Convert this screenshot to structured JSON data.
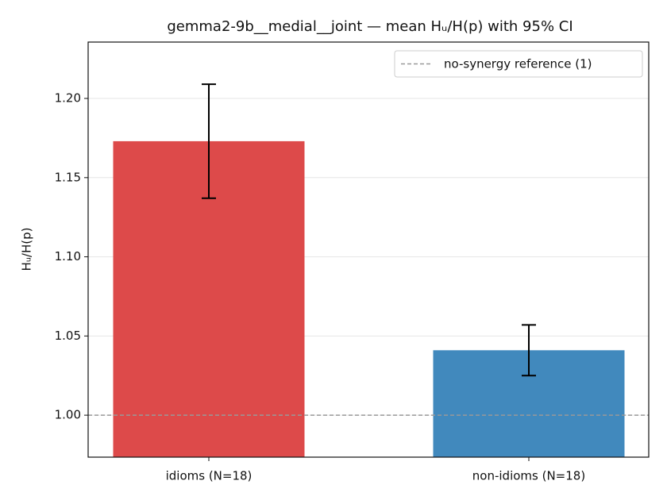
{
  "chart_data": {
    "type": "bar",
    "title": "gemma2-9b__medial__joint — mean Hᵤ/H(p) with 95% CI",
    "y_label": "Hᵤ/H(p)",
    "categories": [
      "idioms (N=18)",
      "non-idioms (N=18)"
    ],
    "values": [
      1.173,
      1.041
    ],
    "errors": [
      0.036,
      0.016
    ],
    "colors": [
      "#dd4a4a",
      "#4189bd"
    ],
    "ylim": [
      0.9735,
      1.2356
    ],
    "yticks": [
      {
        "value": 1.0,
        "label": "1.00"
      },
      {
        "value": 1.05,
        "label": "1.05"
      },
      {
        "value": 1.1,
        "label": "1.10"
      },
      {
        "value": 1.15,
        "label": "1.15"
      },
      {
        "value": 1.2,
        "label": "1.20"
      }
    ],
    "grid": true,
    "reference_line": {
      "value": 1,
      "label": "no-synergy reference (1)",
      "color": "#999999"
    },
    "legend": "upper right"
  }
}
